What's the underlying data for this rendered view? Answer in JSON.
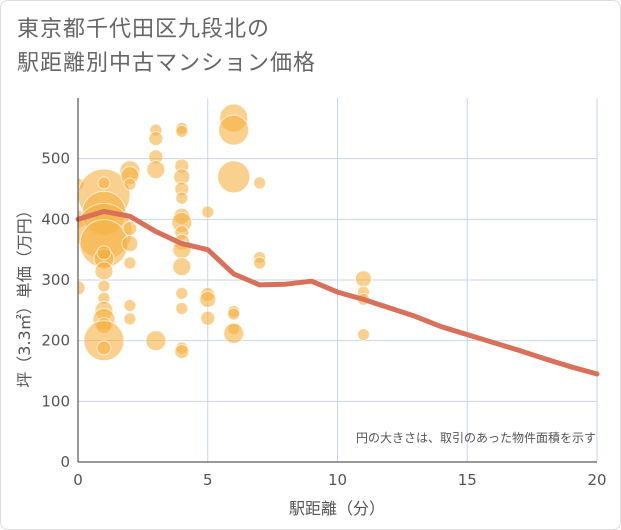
{
  "title": {
    "line1": "東京都千代田区九段北の",
    "line2": "駅距離別中古マンション価格"
  },
  "colors": {
    "bubble": "#f5b041",
    "line": "#d9705a",
    "grid": "#c8d6e5"
  },
  "chart_data": {
    "type": "scatter",
    "xlabel": "駅距離（分）",
    "ylabel": "坪（3.3㎡）単価（万円）",
    "xlim": [
      0,
      20
    ],
    "ylim": [
      0,
      600
    ],
    "x_ticks": [
      "0",
      "5",
      "10",
      "15",
      "20"
    ],
    "y_ticks": [
      "0",
      "100",
      "200",
      "300",
      "400",
      "500"
    ],
    "note": "円の大きさは、取引のあった物件面積を示す",
    "bubbles": [
      {
        "x": 0,
        "y": 458,
        "r": 6
      },
      {
        "x": 0,
        "y": 400,
        "r": 9
      },
      {
        "x": 0,
        "y": 287,
        "r": 7
      },
      {
        "x": 1,
        "y": 440,
        "r": 26
      },
      {
        "x": 1,
        "y": 410,
        "r": 22
      },
      {
        "x": 1,
        "y": 380,
        "r": 28
      },
      {
        "x": 1,
        "y": 360,
        "r": 24
      },
      {
        "x": 1,
        "y": 335,
        "r": 10
      },
      {
        "x": 1,
        "y": 315,
        "r": 9
      },
      {
        "x": 1,
        "y": 290,
        "r": 6
      },
      {
        "x": 1,
        "y": 270,
        "r": 6
      },
      {
        "x": 1,
        "y": 250,
        "r": 9
      },
      {
        "x": 1,
        "y": 235,
        "r": 11
      },
      {
        "x": 1,
        "y": 225,
        "r": 8
      },
      {
        "x": 1,
        "y": 200,
        "r": 20
      },
      {
        "x": 1,
        "y": 188,
        "r": 7
      },
      {
        "x": 1,
        "y": 460,
        "r": 6
      },
      {
        "x": 1,
        "y": 345,
        "r": 7
      },
      {
        "x": 2,
        "y": 480,
        "r": 10
      },
      {
        "x": 2,
        "y": 472,
        "r": 9
      },
      {
        "x": 2,
        "y": 458,
        "r": 6
      },
      {
        "x": 2,
        "y": 385,
        "r": 7
      },
      {
        "x": 2,
        "y": 360,
        "r": 8
      },
      {
        "x": 2,
        "y": 328,
        "r": 6
      },
      {
        "x": 2,
        "y": 258,
        "r": 6
      },
      {
        "x": 2,
        "y": 236,
        "r": 6
      },
      {
        "x": 3,
        "y": 547,
        "r": 6
      },
      {
        "x": 3,
        "y": 533,
        "r": 7
      },
      {
        "x": 3,
        "y": 503,
        "r": 7
      },
      {
        "x": 3,
        "y": 482,
        "r": 9
      },
      {
        "x": 3,
        "y": 200,
        "r": 10
      },
      {
        "x": 4,
        "y": 550,
        "r": 6
      },
      {
        "x": 4,
        "y": 545,
        "r": 6
      },
      {
        "x": 4,
        "y": 488,
        "r": 7
      },
      {
        "x": 4,
        "y": 470,
        "r": 8
      },
      {
        "x": 4,
        "y": 450,
        "r": 7
      },
      {
        "x": 4,
        "y": 435,
        "r": 6
      },
      {
        "x": 4,
        "y": 405,
        "r": 8
      },
      {
        "x": 4,
        "y": 395,
        "r": 10
      },
      {
        "x": 4,
        "y": 378,
        "r": 7
      },
      {
        "x": 4,
        "y": 362,
        "r": 8
      },
      {
        "x": 4,
        "y": 350,
        "r": 9
      },
      {
        "x": 4,
        "y": 322,
        "r": 9
      },
      {
        "x": 4,
        "y": 278,
        "r": 6
      },
      {
        "x": 4,
        "y": 253,
        "r": 6
      },
      {
        "x": 4,
        "y": 188,
        "r": 6
      },
      {
        "x": 4,
        "y": 182,
        "r": 7
      },
      {
        "x": 5,
        "y": 412,
        "r": 6
      },
      {
        "x": 5,
        "y": 276,
        "r": 7
      },
      {
        "x": 5,
        "y": 268,
        "r": 8
      },
      {
        "x": 5,
        "y": 237,
        "r": 7
      },
      {
        "x": 6,
        "y": 567,
        "r": 14
      },
      {
        "x": 6,
        "y": 547,
        "r": 15
      },
      {
        "x": 6,
        "y": 470,
        "r": 16
      },
      {
        "x": 6,
        "y": 248,
        "r": 6
      },
      {
        "x": 6,
        "y": 244,
        "r": 6
      },
      {
        "x": 6,
        "y": 220,
        "r": 6
      },
      {
        "x": 6,
        "y": 212,
        "r": 10
      },
      {
        "x": 7,
        "y": 460,
        "r": 6
      },
      {
        "x": 7,
        "y": 337,
        "r": 6
      },
      {
        "x": 7,
        "y": 328,
        "r": 6
      },
      {
        "x": 11,
        "y": 302,
        "r": 8
      },
      {
        "x": 11,
        "y": 280,
        "r": 6
      },
      {
        "x": 11,
        "y": 268,
        "r": 6
      },
      {
        "x": 11,
        "y": 210,
        "r": 6
      }
    ],
    "trend": {
      "x": [
        0,
        1,
        2,
        3,
        4,
        5,
        6,
        7,
        8,
        9,
        10,
        11,
        12,
        13,
        14,
        15,
        16,
        17,
        18,
        19,
        20
      ],
      "y": [
        400,
        413,
        405,
        380,
        360,
        350,
        310,
        292,
        293,
        298,
        280,
        268,
        254,
        240,
        223,
        210,
        197,
        184,
        170,
        157,
        145
      ]
    }
  }
}
